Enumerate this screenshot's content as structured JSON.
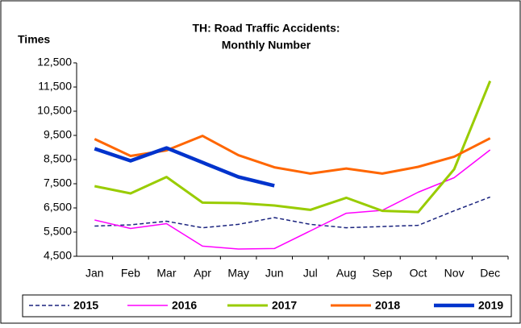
{
  "chart_data": {
    "type": "line",
    "title": [
      "TH: Road Traffic Accidents:",
      "Monthly Number"
    ],
    "y_label": "Times",
    "categories": [
      "Jan",
      "Feb",
      "Mar",
      "Apr",
      "May",
      "Jun",
      "Jul",
      "Aug",
      "Sep",
      "Oct",
      "Nov",
      "Dec"
    ],
    "series": [
      {
        "name": "2015",
        "color": "#1a237e",
        "width": 1.5,
        "dash": "5,3",
        "values": [
          5750,
          5800,
          5950,
          5680,
          5820,
          6100,
          5820,
          5680,
          5730,
          5780,
          6380,
          6950
        ]
      },
      {
        "name": "2016",
        "color": "#ff00ff",
        "width": 1.5,
        "values": [
          6000,
          5650,
          5850,
          4920,
          4800,
          4820,
          5550,
          6280,
          6400,
          7150,
          7750,
          8900
        ]
      },
      {
        "name": "2017",
        "color": "#99cc00",
        "width": 3,
        "values": [
          7400,
          7100,
          7780,
          6720,
          6700,
          6600,
          6420,
          6920,
          6380,
          6330,
          8100,
          11750
        ]
      },
      {
        "name": "2018",
        "color": "#ff6600",
        "width": 3,
        "values": [
          9350,
          8650,
          8880,
          9480,
          8680,
          8180,
          7920,
          8130,
          7920,
          8200,
          8620,
          9380
        ]
      },
      {
        "name": "2019",
        "color": "#0033cc",
        "width": 4.5,
        "values": [
          8950,
          8450,
          8980,
          8380,
          7780,
          7420,
          null,
          null,
          null,
          null,
          null,
          null
        ]
      }
    ],
    "ylim": [
      4500,
      12500
    ],
    "yticks": [
      {
        "value": 4500,
        "label": "4,500"
      },
      {
        "value": 5500,
        "label": "5,500"
      },
      {
        "value": 6500,
        "label": "6,500"
      },
      {
        "value": 7500,
        "label": "7,500"
      },
      {
        "value": 8500,
        "label": "8,500"
      },
      {
        "value": 9500,
        "label": "9,500"
      },
      {
        "value": 10500,
        "label": "10,500"
      },
      {
        "value": 11500,
        "label": "11,500"
      },
      {
        "value": 12500,
        "label": "12,500"
      }
    ],
    "grid": false,
    "legend": "bottom"
  }
}
